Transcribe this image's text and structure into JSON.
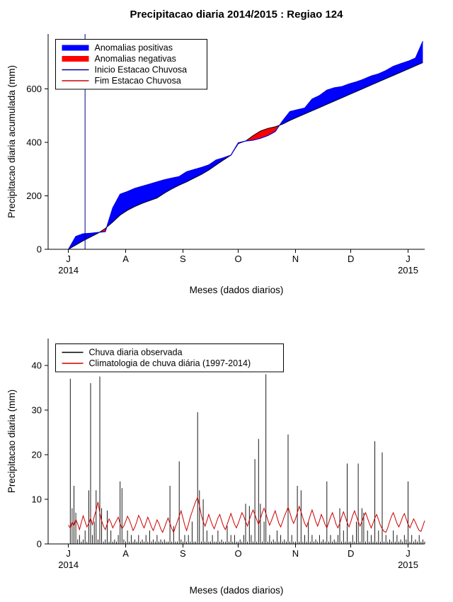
{
  "page": {
    "background": "#ffffff"
  },
  "chart_data": [
    {
      "type": "area",
      "title": "Precipitacao diaria 2014/2015 : Regiao 124",
      "xlabel": "Meses (dados diarios)",
      "ylabel": "Precipitacao diaria acumulada (mm)",
      "xlim": [
        -11,
        193
      ],
      "ylim": [
        0,
        805
      ],
      "grid": false,
      "legend_position": "top-left",
      "x_ticks": {
        "days": [
          0,
          31,
          62,
          92,
          123,
          153,
          184
        ],
        "labels": [
          "J",
          "A",
          "S",
          "O",
          "N",
          "D",
          "J"
        ]
      },
      "x_year_labels": {
        "left": "2014",
        "right": "2015"
      },
      "y_ticks": [
        0,
        200,
        400,
        600
      ],
      "legend": [
        {
          "label": "Anomalias positivas",
          "color": "#0000FF",
          "lw": 8
        },
        {
          "label": "Anomalias negativas",
          "color": "#FF0000",
          "lw": 8
        },
        {
          "label": "Inicio Estacao Chuvosa",
          "color": "#00008B",
          "lw": 1.5
        },
        {
          "label": "Fim Estacao Chuvosa",
          "color": "#CD0000",
          "lw": 1.5
        }
      ],
      "season_start_day": 9,
      "fill_colors": {
        "positive": "#0000FF",
        "negative": "#FF0000"
      },
      "days": [
        0,
        4,
        8,
        12,
        16,
        20,
        24,
        28,
        32,
        36,
        40,
        44,
        48,
        52,
        56,
        60,
        64,
        68,
        72,
        76,
        80,
        84,
        88,
        92,
        96,
        100,
        104,
        108,
        112,
        116,
        120,
        124,
        128,
        132,
        136,
        140,
        144,
        148,
        152,
        156,
        160,
        164,
        168,
        172,
        176,
        180,
        184,
        188,
        192
      ],
      "series": {
        "observed_cumulative": {
          "color": "#0000E0",
          "values": [
            0,
            48,
            58,
            60,
            63,
            66,
            155,
            206,
            216,
            228,
            236,
            244,
            252,
            260,
            266,
            272,
            290,
            298,
            306,
            315,
            334,
            342,
            352,
            398,
            405,
            408,
            415,
            425,
            440,
            480,
            515,
            522,
            528,
            562,
            575,
            595,
            604,
            608,
            618,
            626,
            636,
            648,
            656,
            668,
            684,
            694,
            703,
            715,
            778
          ]
        },
        "climatology_cumulative": {
          "color": "#000000",
          "values": [
            0,
            16,
            32,
            46,
            60,
            78,
            102,
            128,
            146,
            160,
            172,
            182,
            192,
            210,
            226,
            240,
            252,
            266,
            280,
            296,
            315,
            334,
            352,
            395,
            405,
            425,
            442,
            452,
            458,
            468,
            482,
            494,
            506,
            518,
            530,
            542,
            554,
            566,
            578,
            590,
            602,
            614,
            626,
            638,
            650,
            662,
            674,
            686,
            698
          ]
        }
      }
    },
    {
      "type": "bar",
      "title": "",
      "xlabel": "Meses (dados diarios)",
      "ylabel": "Precipitacao diaria (mm)",
      "xlim": [
        -11,
        193
      ],
      "ylim": [
        0,
        46
      ],
      "grid": false,
      "legend_position": "top-left",
      "x_ticks": {
        "days": [
          0,
          31,
          62,
          92,
          123,
          153,
          184
        ],
        "labels": [
          "J",
          "A",
          "S",
          "O",
          "N",
          "D",
          "J"
        ]
      },
      "x_year_labels": {
        "left": "2014",
        "right": "2015"
      },
      "y_ticks": [
        0,
        10,
        20,
        30,
        40
      ],
      "legend": [
        {
          "label": "Chuva diaria observada",
          "color": "#000000",
          "lw": 1.5
        },
        {
          "label": "Climatologia de chuva diária (1997-2014)",
          "color": "#CD0000",
          "lw": 1.5
        }
      ],
      "series": {
        "daily_observed": {
          "kind": "spikes",
          "color": "#000000",
          "values": [
            0,
            37,
            8,
            13,
            7,
            1,
            2,
            0.5,
            1,
            3,
            0.5,
            12,
            36,
            2,
            5,
            12,
            1,
            37.5,
            8,
            0.5,
            1,
            7.5,
            0.5,
            3,
            0.5,
            1,
            0.5,
            2,
            14,
            12.5,
            1,
            0.5,
            3,
            0.5,
            2,
            0.5,
            1,
            0.5,
            2,
            0.5,
            1,
            0.5,
            2,
            0.5,
            3,
            0.5,
            1,
            0.5,
            2,
            0.5,
            1,
            0.5,
            1,
            0.5,
            0.5,
            13,
            0.5,
            4,
            0.5,
            0.5,
            18.5,
            1,
            0.5,
            2,
            0.5,
            2,
            0.5,
            5,
            0.5,
            0.5,
            29.5,
            12,
            0.5,
            10,
            0.5,
            3,
            0.5,
            0.5,
            2,
            0.5,
            0.5,
            3,
            0.5,
            1,
            0.5,
            0.5,
            4,
            0.5,
            2,
            0.5,
            2,
            0.5,
            0.5,
            1,
            0.5,
            2,
            9,
            0.5,
            8.5,
            2,
            0.5,
            19,
            0.5,
            23.5,
            9,
            0.5,
            5,
            38,
            0.5,
            2,
            0.5,
            1,
            0.5,
            3,
            0.5,
            2,
            0.5,
            1,
            0.5,
            24.5,
            0.5,
            2,
            0.5,
            0.5,
            13,
            0.5,
            12,
            0.5,
            2,
            0.5,
            5,
            0.5,
            2,
            0.5,
            1,
            0.5,
            2,
            0.5,
            1,
            0.5,
            14,
            0.5,
            2,
            0.5,
            1,
            0.5,
            2,
            8,
            0.5,
            3,
            0.5,
            18,
            0.5,
            0.5,
            2,
            0.5,
            5,
            18,
            0.5,
            8,
            7,
            0.5,
            3,
            0.5,
            2,
            0.5,
            23,
            0.5,
            3,
            0.5,
            20.5,
            0.5,
            2,
            0.5,
            1,
            0.5,
            3,
            0.5,
            2,
            0.5,
            1,
            0.5,
            2,
            1,
            14,
            0.5,
            2,
            0.5,
            1,
            0.5,
            2,
            0.5,
            1,
            0.5
          ]
        },
        "daily_climatology": {
          "kind": "line",
          "color": "#CD0000",
          "values": [
            4.2,
            3.5,
            5,
            4,
            5.5,
            4.5,
            3.2,
            4.8,
            6.3,
            5,
            3.8,
            4.6,
            5.8,
            4.2,
            6.2,
            7.5,
            9.4,
            7,
            5.2,
            4,
            3.2,
            4.5,
            5.6,
            4.8,
            3.6,
            4.4,
            5.2,
            6,
            4.6,
            3.4,
            4,
            5,
            6.2,
            5.4,
            4.2,
            3,
            3.8,
            5,
            6.4,
            5.6,
            4.4,
            3.6,
            4.8,
            6,
            5,
            3.8,
            3,
            4.2,
            5.4,
            4.6,
            3.4,
            2.6,
            3.6,
            4.8,
            5.8,
            4.6,
            3.4,
            2.6,
            3.8,
            5,
            6.2,
            7.4,
            5.8,
            4.2,
            3,
            4.4,
            6,
            7.2,
            8.4,
            9.6,
            10.4,
            8.6,
            6.4,
            5,
            4,
            5.2,
            6.6,
            5.4,
            4.2,
            3.4,
            4.6,
            5.8,
            6.6,
            5.2,
            4,
            3.2,
            4.4,
            5.6,
            6.8,
            5.6,
            4.4,
            3.6,
            4.6,
            5.8,
            7,
            6.2,
            5,
            4,
            5.4,
            6.6,
            7.6,
            6.6,
            5.4,
            4.4,
            5.6,
            7,
            8,
            6.8,
            5.4,
            4.2,
            5.2,
            6.4,
            7.4,
            6,
            4.6,
            3.8,
            5,
            6.2,
            7.2,
            8.2,
            7,
            5.6,
            4.6,
            5.6,
            7,
            8.4,
            7.2,
            5.8,
            4.6,
            3.8,
            5,
            6.4,
            7.6,
            6.4,
            5,
            4,
            5.2,
            6.6,
            5.6,
            4.4,
            3.6,
            4.8,
            6,
            7,
            5.8,
            4.4,
            3.6,
            4.6,
            6,
            7.2,
            6,
            4.8,
            3.8,
            5,
            6.4,
            7.4,
            6.2,
            5,
            4,
            5,
            6.2,
            7,
            5.8,
            4.6,
            3.6,
            4.6,
            5.8,
            6.6,
            5.4,
            4.2,
            3.4,
            2.8,
            2.6,
            3.6,
            5,
            6.2,
            7,
            5.8,
            4.6,
            3.8,
            4.8,
            6,
            6.8,
            5.6,
            4.4,
            3.6,
            4.6,
            5.6,
            4.8,
            3.8,
            3,
            2.8,
            4,
            5.2
          ]
        }
      }
    }
  ]
}
